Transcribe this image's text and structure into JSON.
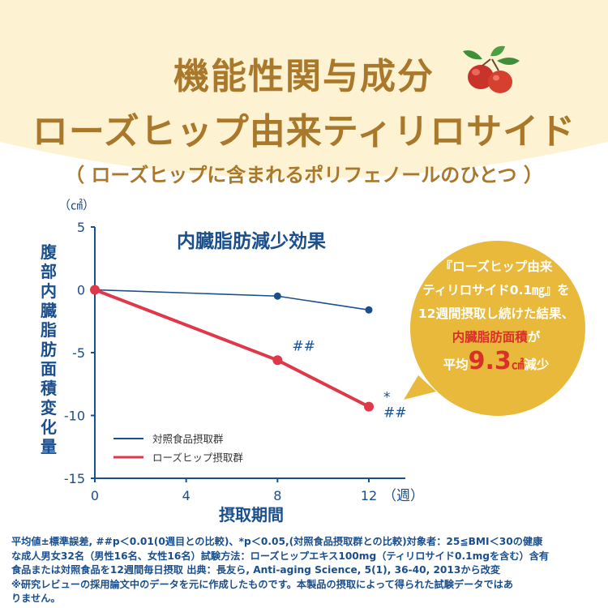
{
  "header": {
    "title_line1": "機能性関与成分",
    "title_line2": "ローズヒップ由来ティリロサイド",
    "subtitle": "（ ローズヒップに含まれるポリフェノールのひとつ ）"
  },
  "colors": {
    "background_cream": "#fdf2d2",
    "title_gold": "#a9782a",
    "axis_blue": "#1a4e8c",
    "control_line": "#1a4e8c",
    "rosehip_line": "#e0374a",
    "bubble_gold": "#e8b93b",
    "highlight_red": "#d9302a"
  },
  "icons": [
    "rosehip-berries-icon"
  ],
  "chart_data": {
    "type": "line",
    "title": "内臓脂肪減少効果",
    "ylabel": "腹部内臓脂肪面積変化量",
    "yunit": "（㎠）",
    "xlabel": "摂取期間",
    "xunit": "（週）",
    "ylim": [
      -15,
      5
    ],
    "xlim": [
      0,
      12
    ],
    "yticks": [
      5,
      0,
      -5,
      -10,
      -15
    ],
    "xticks": [
      0,
      4,
      8,
      12
    ],
    "x": [
      0,
      8,
      12
    ],
    "series": [
      {
        "name": "対照食品摂取群",
        "values": [
          0,
          -0.5,
          -1.6
        ],
        "annotations": [
          "",
          "",
          ""
        ]
      },
      {
        "name": "ローズヒップ摂取群",
        "values": [
          0,
          -5.6,
          -9.3
        ],
        "annotations": [
          "",
          "##",
          "*\n##"
        ]
      }
    ],
    "legend_position": "bottom-left"
  },
  "callout": {
    "line1": "『ローズヒップ由来",
    "line2": "ティリロサイド0.1㎎』を",
    "line3": "12週間摂取し続けた結果、",
    "line4_red": "内臓脂肪面積",
    "line4_tail": "が",
    "line5_prefix": "平均",
    "line5_value": "9.3",
    "line5_unit": "㎠",
    "line5_suffix": "減少"
  },
  "footnote": {
    "line1": "平均値±標準誤差, ##p＜0.01(0週目との比較)、*p＜0.05,(対照食品摂取群との比較)対象者：25≦BMI＜30の健康",
    "line2": "な成人男女32名（男性16名、女性16名）試験方法：ローズヒップエキス100mg（ティリロサイド0.1mgを含む）含有",
    "line3": "食品または対照食品を12週間毎日摂取 出典：長友ら, Anti-aging Science, 5(1), 36-40, 2013から改変",
    "line4": "※研究レビューの採用論文中のデータを元に作成したものです。本製品の摂取によって得られた試験データではあ",
    "line5": "りません。"
  }
}
